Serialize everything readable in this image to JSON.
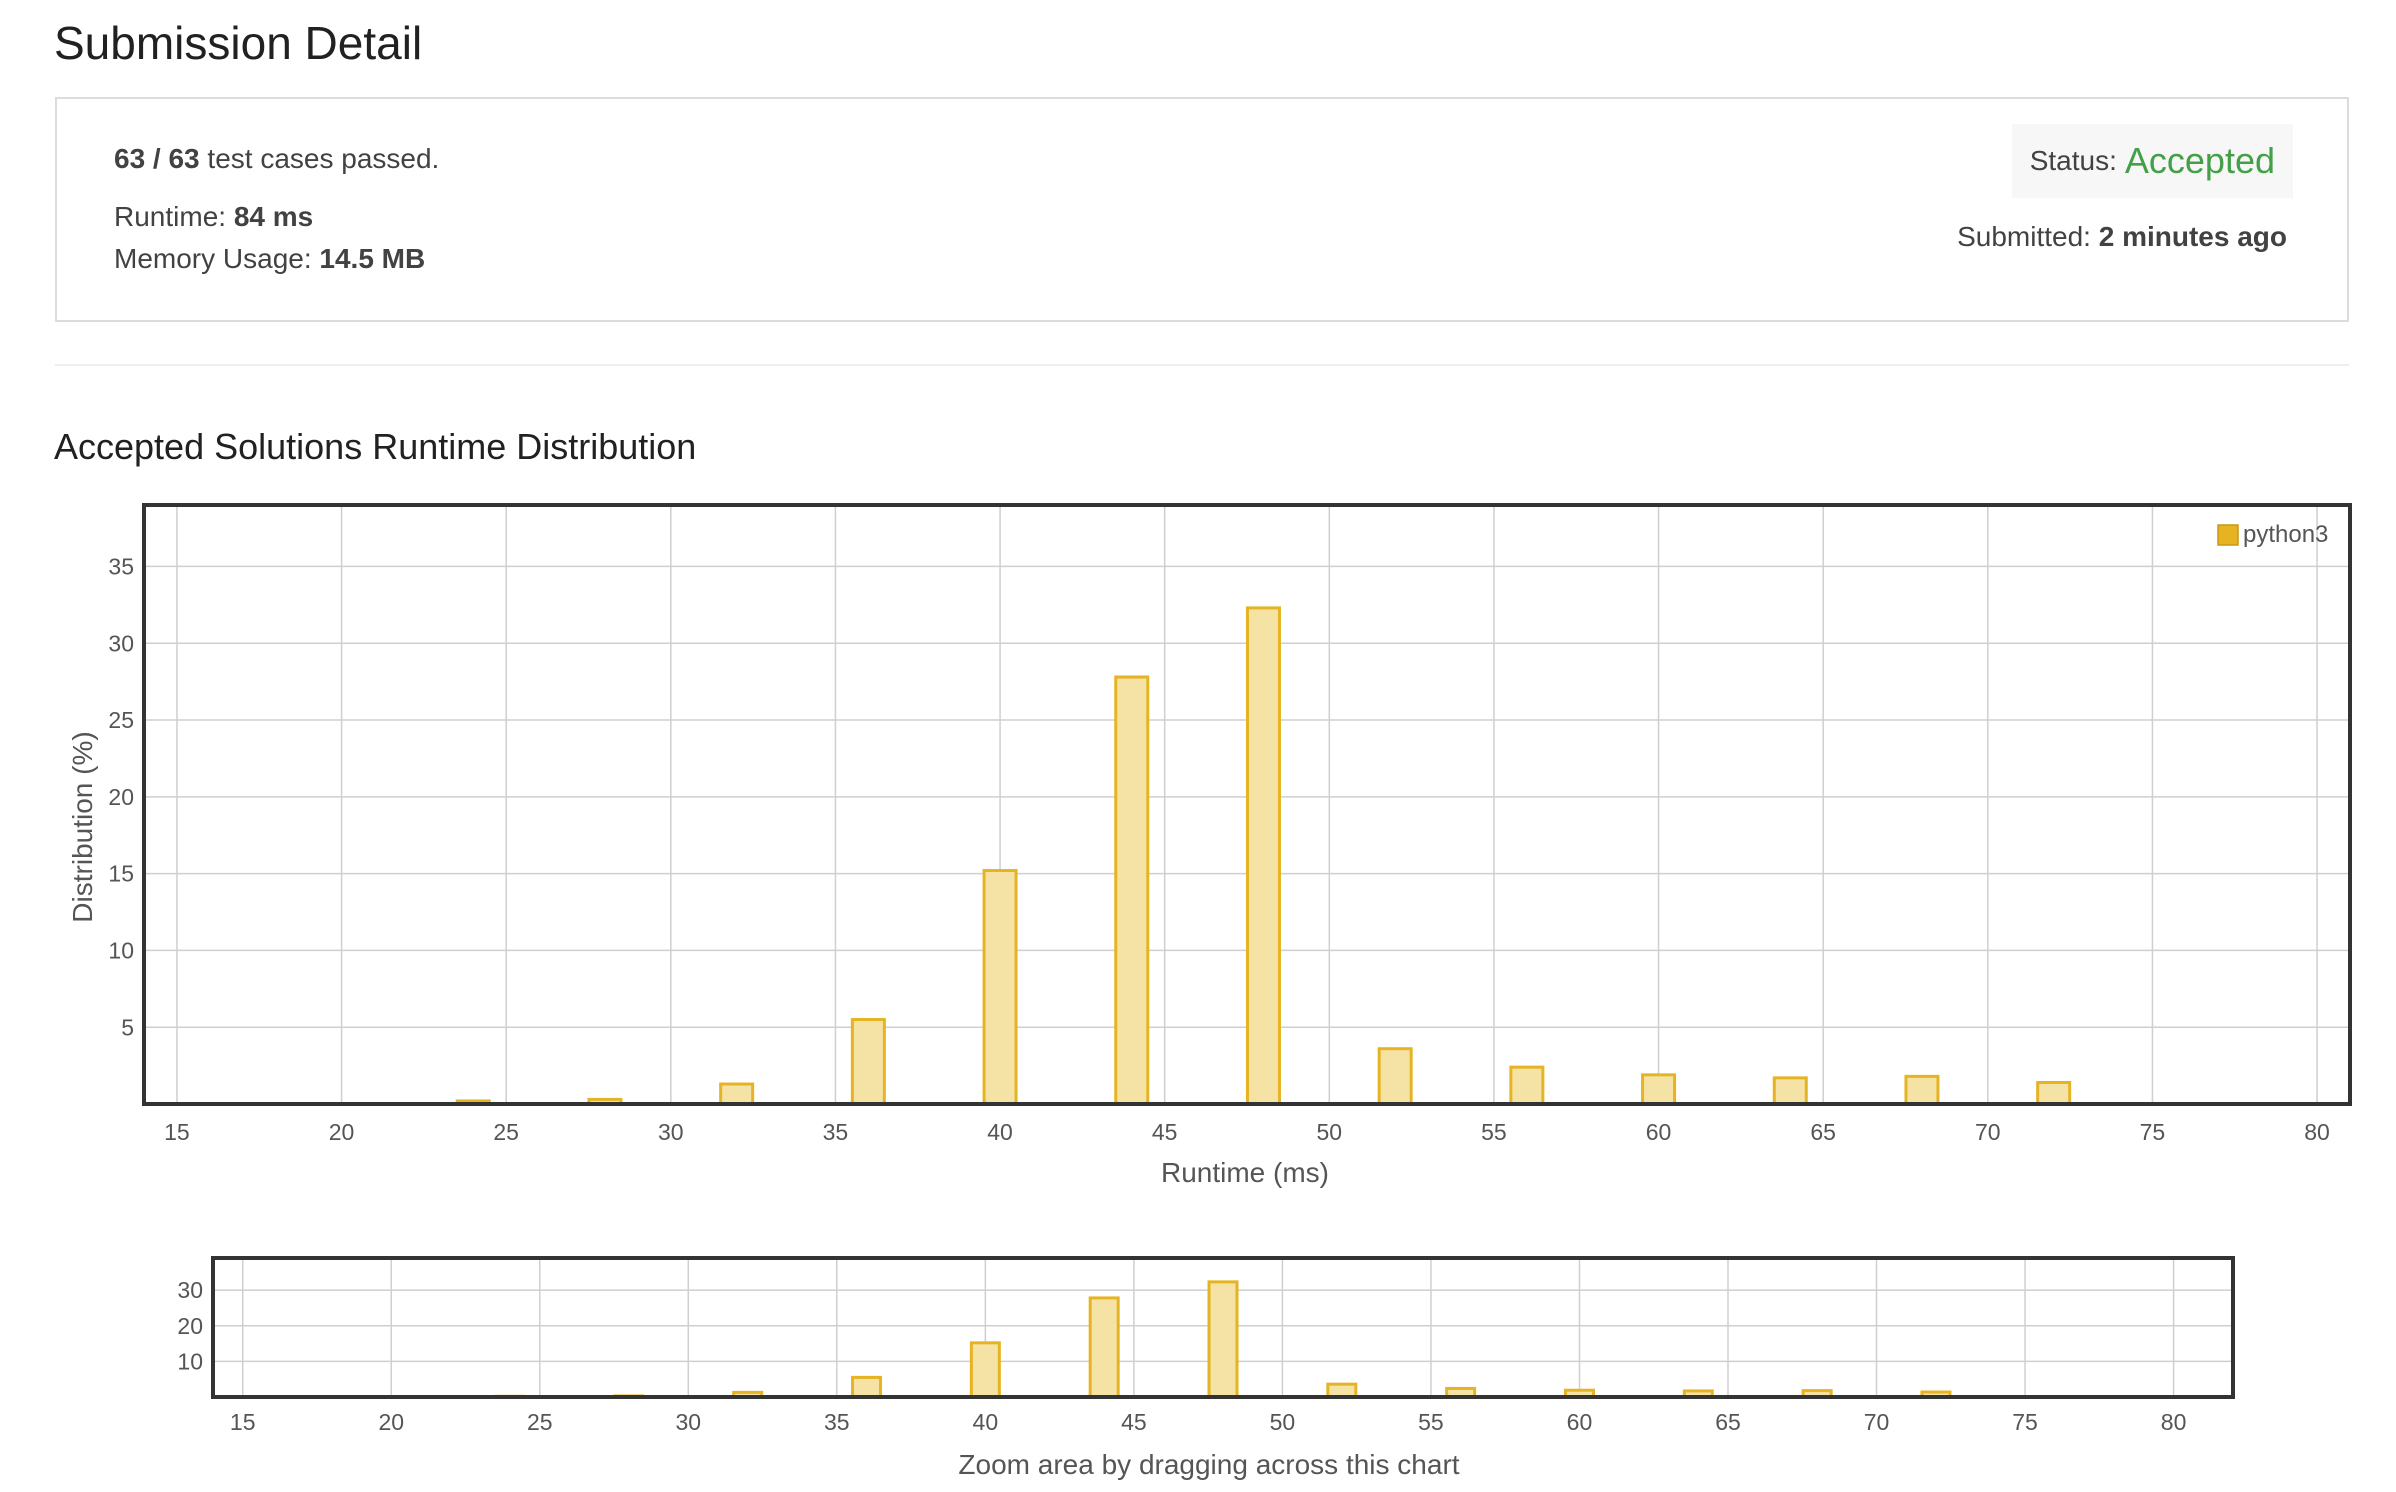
{
  "header": {
    "title": "Submission Detail"
  },
  "summary": {
    "tests_passed": "63 / 63",
    "tests_suffix": " test cases passed.",
    "runtime_label": "Runtime: ",
    "runtime_value": "84 ms",
    "memory_label": "Memory Usage: ",
    "memory_value": "14.5 MB",
    "status_label": "Status: ",
    "status_value": "Accepted",
    "submitted_label": "Submitted: ",
    "submitted_value": "2 minutes ago"
  },
  "distribution": {
    "title": "Accepted Solutions Runtime Distribution"
  },
  "colors": {
    "accepted": "#43a047",
    "bar_fill": "#f5e3a6",
    "bar_stroke": "#e6b422"
  },
  "chart_data": [
    {
      "type": "bar",
      "x": [
        24,
        28,
        32,
        36,
        40,
        44,
        48,
        52,
        56,
        60,
        64,
        68,
        72
      ],
      "series": [
        {
          "name": "python3",
          "values": [
            0.2,
            0.3,
            1.3,
            5.5,
            15.2,
            27.8,
            32.3,
            3.6,
            2.4,
            1.9,
            1.7,
            1.8,
            1.4
          ]
        }
      ],
      "xlabel": "Runtime (ms)",
      "ylabel": "Distribution (%)",
      "xlim": [
        14,
        81
      ],
      "ylim": [
        0,
        39
      ],
      "xticks": [
        15,
        20,
        25,
        30,
        35,
        40,
        45,
        50,
        55,
        60,
        65,
        70,
        75,
        80
      ],
      "yticks": [
        5,
        10,
        15,
        20,
        25,
        30,
        35
      ],
      "grid": true,
      "legend": "top-right"
    },
    {
      "type": "bar",
      "x": [
        24,
        28,
        32,
        36,
        40,
        44,
        48,
        52,
        56,
        60,
        64,
        68,
        72
      ],
      "series": [
        {
          "name": "python3",
          "values": [
            0.2,
            0.3,
            1.3,
            5.5,
            15.2,
            27.8,
            32.3,
            3.6,
            2.4,
            1.9,
            1.7,
            1.8,
            1.4
          ]
        }
      ],
      "xlabel": "Zoom area by dragging across this chart",
      "xlim": [
        14,
        82
      ],
      "ylim": [
        0,
        39
      ],
      "xticks": [
        15,
        20,
        25,
        30,
        35,
        40,
        45,
        50,
        55,
        60,
        65,
        70,
        75,
        80
      ],
      "yticks": [
        10,
        20,
        30
      ],
      "grid": true
    }
  ]
}
